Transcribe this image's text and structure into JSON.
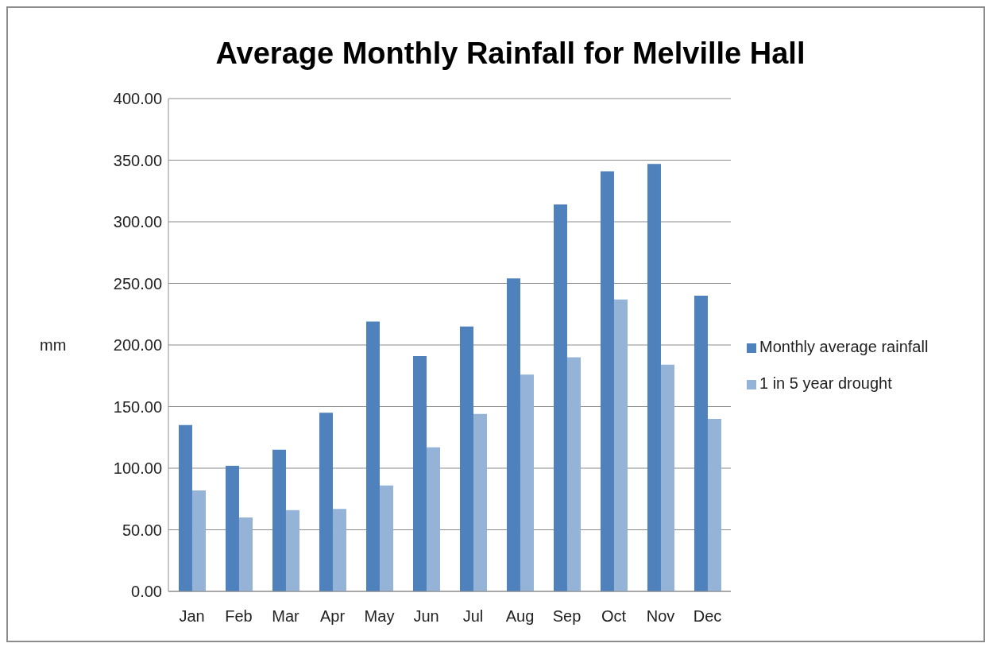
{
  "chart_data": {
    "type": "bar",
    "title": "Average Monthly Rainfall for Melville Hall",
    "ylabel": "mm",
    "categories": [
      "Jan",
      "Feb",
      "Mar",
      "Apr",
      "May",
      "Jun",
      "Jul",
      "Aug",
      "Sep",
      "Oct",
      "Nov",
      "Dec"
    ],
    "series": [
      {
        "name": "Monthly average rainfall",
        "color": "#4f81bd",
        "values": [
          135,
          102,
          115,
          145,
          219,
          191,
          215,
          254,
          314,
          341,
          347,
          240
        ]
      },
      {
        "name": "1 in 5 year drought",
        "color": "#95b3d7",
        "values": [
          82,
          60,
          66,
          67,
          86,
          117,
          144,
          176,
          190,
          237,
          184,
          140
        ]
      }
    ],
    "ylim": [
      0,
      400
    ],
    "yticks": [
      {
        "value": 0,
        "label": "0.00"
      },
      {
        "value": 50,
        "label": "50.00"
      },
      {
        "value": 100,
        "label": "100.00"
      },
      {
        "value": 150,
        "label": "150.00"
      },
      {
        "value": 200,
        "label": "200.00"
      },
      {
        "value": 250,
        "label": "250.00"
      },
      {
        "value": 300,
        "label": "300.00"
      },
      {
        "value": 350,
        "label": "350.00"
      },
      {
        "value": 400,
        "label": "400.00"
      }
    ],
    "grid": "y",
    "legend": "right"
  }
}
